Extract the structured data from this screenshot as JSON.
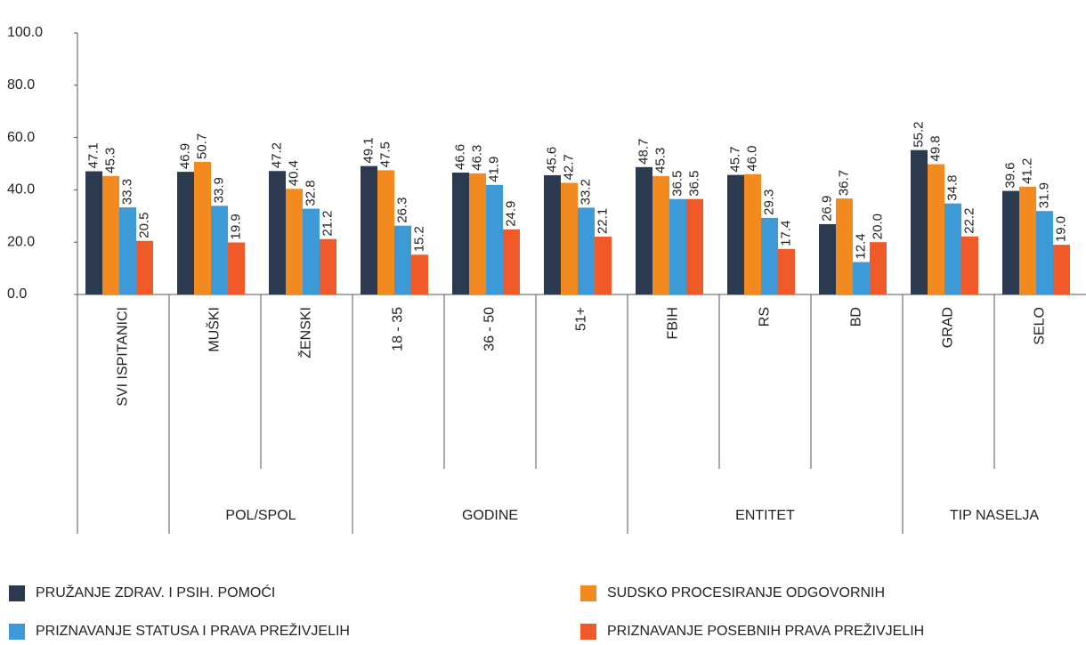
{
  "chart_data": {
    "type": "bar",
    "categories": [
      "SVI ISPITANICI",
      "MUŠKI",
      "ŽENSKI",
      "18 - 35",
      "36 - 50",
      "51+",
      "FBIH",
      "RS",
      "BD",
      "GRAD",
      "SELO"
    ],
    "groups": [
      {
        "label": "POL/SPOL",
        "start": 1,
        "end": 2
      },
      {
        "label": "GODINE",
        "start": 3,
        "end": 5
      },
      {
        "label": "ENTITET",
        "start": 6,
        "end": 8
      },
      {
        "label": "TIP NASELJA",
        "start": 9,
        "end": 10
      }
    ],
    "series": [
      {
        "name": "PRUŽANJE ZDRAV. I PSIH. POMOĆI",
        "color": "#2b3a4e",
        "values": [
          47.1,
          46.9,
          47.2,
          49.1,
          46.6,
          45.6,
          48.7,
          45.7,
          26.9,
          55.2,
          39.6
        ],
        "value_labels": [
          "47.1",
          "46.9",
          "47.2",
          "49.1",
          "46.6",
          "45.6",
          "48.7",
          "45.7",
          "26.9",
          "55.2",
          "39.6"
        ]
      },
      {
        "name": "SUDSKO PROCESIRANJE ODGOVORNIH",
        "color": "#f28a20",
        "values": [
          45.3,
          50.7,
          40.4,
          47.5,
          46.3,
          42.7,
          45.3,
          46.0,
          36.7,
          49.8,
          41.2
        ],
        "value_labels": [
          "45.3",
          "50.7",
          "40.4",
          "47.5",
          "46.3",
          "42.7",
          "45.3",
          "46.0",
          "36.7",
          "49.8",
          "41.2"
        ]
      },
      {
        "name": "PRIZNAVANJE STATUSA I PRAVA PREŽIVJELIH",
        "color": "#3d9ad6",
        "values": [
          33.3,
          33.9,
          32.8,
          26.3,
          41.9,
          33.2,
          36.5,
          29.3,
          12.4,
          34.8,
          31.9
        ],
        "value_labels": [
          "33.3",
          "33.9",
          "32.8",
          "26.3",
          "41.9",
          "33.2",
          "36.5",
          "29.3",
          "12.4",
          "34.8",
          "31.9"
        ]
      },
      {
        "name": "PRIZNAVANJE POSEBNIH PRAVA PREŽIVJELIH",
        "color": "#f05a28",
        "values": [
          20.5,
          19.9,
          21.2,
          15.2,
          24.9,
          22.1,
          36.5,
          17.4,
          20.0,
          22.2,
          19.0
        ],
        "value_labels": [
          "20.5",
          "19.9",
          "21.2",
          "15.2",
          "24.9",
          "22.1",
          "36.5",
          "17.4",
          "20.0",
          "22.2",
          "19.0"
        ]
      }
    ],
    "ylim": [
      0,
      100
    ],
    "yticks": [
      {
        "value": 0,
        "label": "0.0"
      },
      {
        "value": 20,
        "label": "20.0"
      },
      {
        "value": 40,
        "label": "40.0"
      },
      {
        "value": 60,
        "label": "60.0"
      },
      {
        "value": 80,
        "label": "80.0"
      },
      {
        "value": 100,
        "label": "100.0"
      }
    ],
    "legend": "bottom"
  }
}
